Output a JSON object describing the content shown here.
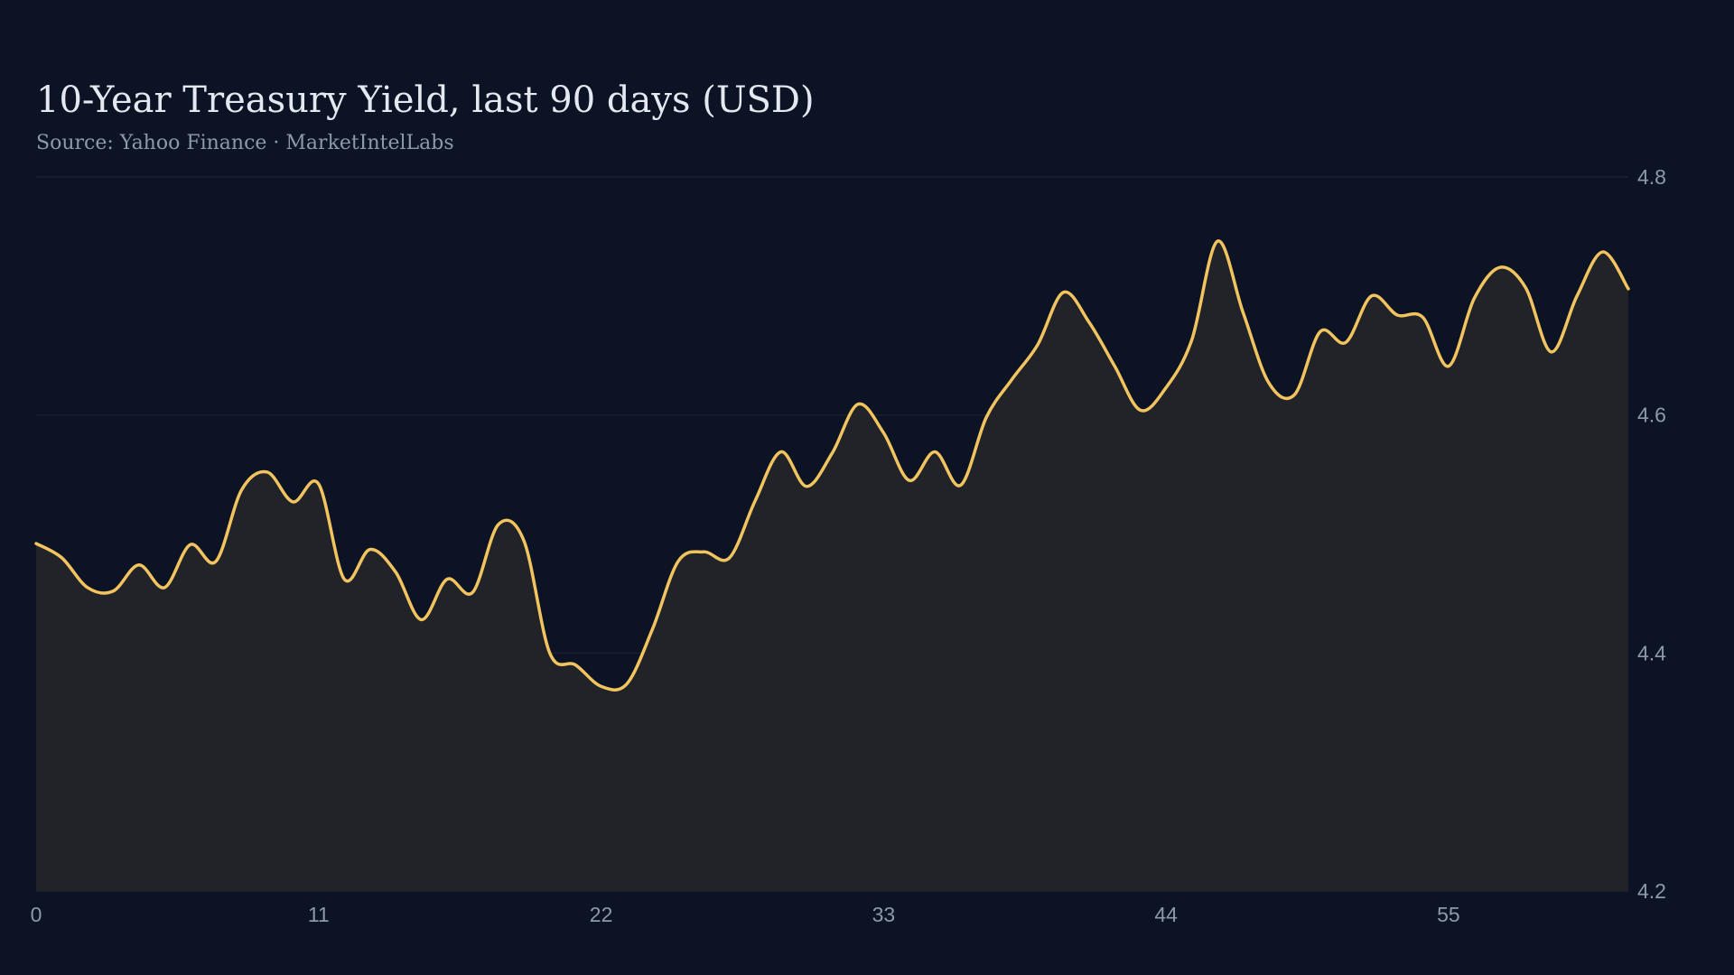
{
  "title": "10-Year Treasury Yield, last 90 days (USD)",
  "subtitle": "Source: Yahoo Finance · MarketIntelLabs",
  "colors": {
    "background": "#0c1324",
    "line": "#f2c45f",
    "area": "#212328",
    "grid": "#1d2535",
    "text": "#e4e8f0",
    "muted": "#8f98aa"
  },
  "chart_data": {
    "type": "area",
    "title": "10-Year Treasury Yield, last 90 days (USD)",
    "subtitle": "Source: Yahoo Finance · MarketIntelLabs",
    "xlabel": "",
    "ylabel": "",
    "x_ticks": [
      0,
      11,
      22,
      33,
      44,
      55
    ],
    "y_ticks": [
      4.2,
      4.4,
      4.6,
      4.8
    ],
    "xlim": [
      0,
      62
    ],
    "ylim": [
      4.2,
      4.8
    ],
    "y_axis_position": "right",
    "grid": "horizontal",
    "legend": "none",
    "series": [
      {
        "x": [
          0,
          1,
          2,
          3,
          4,
          5,
          6,
          7,
          8,
          9,
          10,
          11,
          12,
          13,
          14,
          15,
          16,
          17,
          18,
          19,
          20,
          21,
          22,
          23,
          24,
          25,
          26,
          27,
          28,
          29,
          30,
          31,
          32,
          33,
          34,
          35,
          36,
          37,
          38,
          39,
          40,
          41,
          42,
          43,
          44,
          45,
          46,
          47,
          48,
          49,
          50,
          51,
          52,
          53,
          54,
          55,
          56,
          57,
          58,
          59,
          60,
          61,
          62
        ],
        "values": [
          4.492,
          4.48,
          4.455,
          4.452,
          4.474,
          4.455,
          4.491,
          4.477,
          4.537,
          4.552,
          4.527,
          4.542,
          4.462,
          4.487,
          4.468,
          4.428,
          4.462,
          4.451,
          4.508,
          4.494,
          4.4,
          4.39,
          4.372,
          4.374,
          4.42,
          4.477,
          4.485,
          4.48,
          4.528,
          4.569,
          4.54,
          4.568,
          4.609,
          4.585,
          4.545,
          4.569,
          4.541,
          4.598,
          4.63,
          4.659,
          4.703,
          4.678,
          4.641,
          4.604,
          4.623,
          4.663,
          4.746,
          4.686,
          4.627,
          4.617,
          4.67,
          4.661,
          4.7,
          4.684,
          4.682,
          4.641,
          4.698,
          4.724,
          4.707,
          4.653,
          4.7,
          4.737,
          4.706
        ]
      }
    ]
  }
}
